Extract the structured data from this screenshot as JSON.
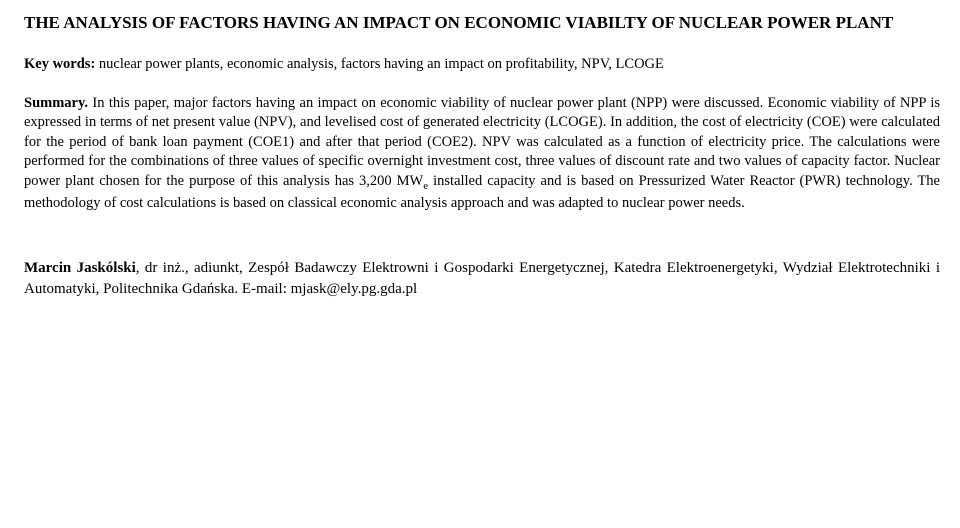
{
  "title": "THE ANALYSIS OF FACTORS HAVING AN IMPACT ON ECONOMIC VIABILTY OF NUCLEAR POWER PLANT",
  "keywords": {
    "label": "Key words:",
    "text": " nuclear power plants, economic analysis, factors having an impact on profitability, NPV, LCOGE"
  },
  "summary": {
    "label": "Summary.",
    "p1a": " In this paper, major factors having an impact on economic viability of nuclear power plant (NPP) were discussed. Economic viability of NPP is expressed in terms of net present value (NPV), and levelised cost of generated electricity (LCOGE). In addition, the cost of electricity (COE) were calculated for the period of bank loan payment (COE1) and after that period (COE2). NPV was calculated as a function of electricity price. The calculations were performed for the combinations of three values of specific overnight investment cost, three values of discount rate and two values of capacity factor. Nuclear power plant chosen for the purpose of this analysis has 3,200 MW",
    "sub": "e",
    "p1b": " installed capacity and is based on Pressurized Water Reactor (PWR) technology. The methodology of cost calculations is based on classical economic analysis approach and was adapted to nuclear power needs."
  },
  "author": {
    "name": "Marcin Jaskólski",
    "rest": ", dr inż., adiunkt, Zespół Badawczy Elektrowni i Gospodarki Energetycznej, Katedra Elektroenergetyki, Wydział Elektrotechniki i Automatyki, Politechnika Gdańska. E-mail: mjask@ely.pg.gda.pl"
  }
}
